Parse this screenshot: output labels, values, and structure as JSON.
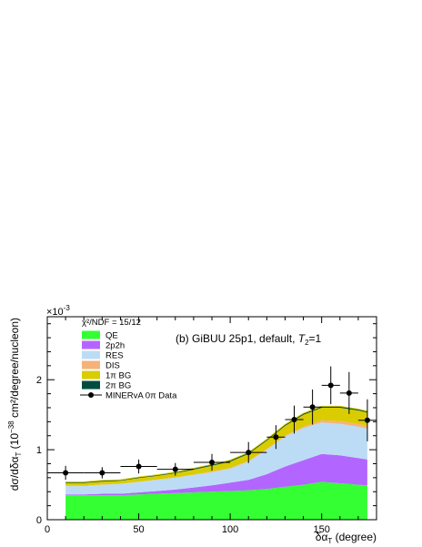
{
  "chart_data": {
    "type": "area",
    "panel_label": "(b) GiBUU 25p1, default, ",
    "panel_label_tail": "=1",
    "panel_label_var": "T",
    "panel_label_sub": "2",
    "chi2_label": "χ²/NDF = 15/12",
    "exponent_label": "×10",
    "exponent_power": "-3",
    "xlabel": {
      "base": "δα",
      "sub": "T",
      "unit": " (degree)"
    },
    "ylabel": {
      "p1": "dσ/dδα",
      "sub": "T",
      "p2": " (10",
      "sup": "−38",
      "p3": " cm²/degree/nucleon)"
    },
    "xlim": [
      0,
      180
    ],
    "ylim": [
      0,
      0.0029
    ],
    "x_ticks": [
      {
        "v": 0,
        "label": "0"
      },
      {
        "v": 50,
        "label": "50"
      },
      {
        "v": 100,
        "label": "100"
      },
      {
        "v": 150,
        "label": "150"
      }
    ],
    "y_ticks": [
      {
        "v": 0,
        "label": "0"
      },
      {
        "v": 0.001,
        "label": "1"
      },
      {
        "v": 0.002,
        "label": "2"
      }
    ],
    "colors": {
      "QE": "#33ff33",
      "2p2h": "#b366ff",
      "RES": "#bcdcf5",
      "DIS": "#f5b27a",
      "1piBG": "#d9cc00",
      "2piBG": "#004d40"
    },
    "x": [
      10,
      20,
      30,
      40,
      50,
      60,
      70,
      80,
      90,
      100,
      110,
      120,
      130,
      140,
      150,
      160,
      170,
      175
    ],
    "series": [
      {
        "name": "QE",
        "key": "QE",
        "values": [
          0.00035,
          0.00035,
          0.00035,
          0.00035,
          0.00036,
          0.00037,
          0.00038,
          0.00039,
          0.0004,
          0.00041,
          0.00042,
          0.00044,
          0.00047,
          0.0005,
          0.00054,
          0.00052,
          0.0005,
          0.00049
        ]
      },
      {
        "name": "2p2h",
        "key": "2p2h",
        "values": [
          1e-05,
          1e-05,
          2e-05,
          2e-05,
          3e-05,
          4e-05,
          5e-05,
          7e-05,
          9e-05,
          0.00012,
          0.00015,
          0.00021,
          0.00029,
          0.00035,
          0.0004,
          0.0004,
          0.00038,
          0.00037
        ]
      },
      {
        "name": "RES",
        "key": "RES",
        "values": [
          0.00012,
          0.00012,
          0.00013,
          0.00014,
          0.00015,
          0.00016,
          0.00017,
          0.00018,
          0.00019,
          0.0002,
          0.00026,
          0.00035,
          0.00043,
          0.00046,
          0.00045,
          0.00045,
          0.00045,
          0.00044
        ]
      },
      {
        "name": "DIS",
        "key": "DIS",
        "values": [
          5e-06,
          5e-06,
          5e-06,
          5e-06,
          5e-06,
          5e-06,
          5e-06,
          5e-06,
          1e-05,
          1e-05,
          1e-05,
          1e-05,
          1e-05,
          2e-05,
          3e-05,
          4e-05,
          4e-05,
          4e-05
        ]
      },
      {
        "name": "1π BG",
        "key": "1piBG",
        "values": [
          4e-05,
          4e-05,
          4e-05,
          4e-05,
          5e-05,
          5e-05,
          6e-05,
          7e-05,
          8e-05,
          9e-05,
          0.0001,
          0.00012,
          0.00014,
          0.00017,
          0.00018,
          0.00019,
          0.00019,
          0.00019
        ]
      },
      {
        "name": "2π BG",
        "key": "2piBG",
        "values": [
          1.5e-05,
          1.5e-05,
          1.5e-05,
          1.5e-05,
          1.5e-05,
          1.5e-05,
          1.5e-05,
          2e-05,
          2e-05,
          2e-05,
          2e-05,
          2e-05,
          2e-05,
          2e-05,
          2e-05,
          2e-05,
          2e-05,
          2e-05
        ]
      }
    ],
    "data_series": {
      "name": "MINERvA 0π Data",
      "points": [
        {
          "x": 10,
          "xlo": 0,
          "xhi": 20,
          "y": 0.00067,
          "elo": 0.0001,
          "ehi": 0.0001
        },
        {
          "x": 30,
          "xlo": 20,
          "xhi": 40,
          "y": 0.00067,
          "elo": 8e-05,
          "ehi": 8e-05
        },
        {
          "x": 50,
          "xlo": 40,
          "xhi": 60,
          "y": 0.00076,
          "elo": 0.0001,
          "ehi": 0.0001
        },
        {
          "x": 70,
          "xlo": 60,
          "xhi": 80,
          "y": 0.00072,
          "elo": 9e-05,
          "ehi": 9e-05
        },
        {
          "x": 90,
          "xlo": 80,
          "xhi": 100,
          "y": 0.00082,
          "elo": 0.00012,
          "ehi": 0.00012
        },
        {
          "x": 110,
          "xlo": 100,
          "xhi": 120,
          "y": 0.00096,
          "elo": 0.00015,
          "ehi": 0.00015
        },
        {
          "x": 125,
          "xlo": 120,
          "xhi": 130,
          "y": 0.00118,
          "elo": 0.00017,
          "ehi": 0.00017
        },
        {
          "x": 135,
          "xlo": 130,
          "xhi": 140,
          "y": 0.00143,
          "elo": 0.0002,
          "ehi": 0.0002
        },
        {
          "x": 145,
          "xlo": 140,
          "xhi": 150,
          "y": 0.00161,
          "elo": 0.00025,
          "ehi": 0.00025
        },
        {
          "x": 155,
          "xlo": 150,
          "xhi": 160,
          "y": 0.00192,
          "elo": 0.00027,
          "ehi": 0.00027
        },
        {
          "x": 165,
          "xlo": 160,
          "xhi": 170,
          "y": 0.00181,
          "elo": 0.0003,
          "ehi": 0.0003
        },
        {
          "x": 175,
          "xlo": 170,
          "xhi": 180,
          "y": 0.00142,
          "elo": 0.0003,
          "ehi": 0.0003
        }
      ]
    },
    "legend": [
      {
        "label": "QE",
        "key": "QE",
        "style": "box"
      },
      {
        "label": "2p2h",
        "key": "2p2h",
        "style": "box"
      },
      {
        "label": "RES",
        "key": "RES",
        "style": "box"
      },
      {
        "label": "DIS",
        "key": "DIS",
        "style": "box"
      },
      {
        "label": "1π BG",
        "key": "1piBG",
        "style": "box"
      },
      {
        "label": "2π BG",
        "key": "2piBG",
        "style": "box"
      },
      {
        "label": "MINERvA 0π Data",
        "key": "data",
        "style": "marker"
      }
    ],
    "legend_position": "top-left",
    "grid": false
  }
}
